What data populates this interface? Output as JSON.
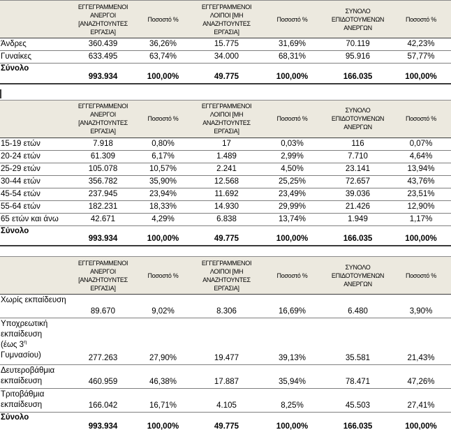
{
  "header": {
    "registered": "ΕΓΓΕΓΡΑΜΜΕΝΟΙ ΑΝΕΡΓΟΙ [ΑΝΑΖΗΤΟΥΝΤΕΣ ΕΡΓΑΣΙΑ]",
    "pct": "Ποσοστό %",
    "other": "ΕΓΓΕΓΡΑΜΜΕΝΟΙ ΛΟΙΠΟΙ [ΜΗ ΑΝΑΖΗΤΟΥΝΤΕΣ ΕΡΓΑΣΙΑ]",
    "subsidized": "ΣΥΝΟΛΟ ΕΠΙΔΟΤΟΥΜΕΝΩΝ ΑΝΕΡΓΩΝ"
  },
  "tables": [
    {
      "title": "by-gender",
      "rows": [
        {
          "label": "Άνδρες",
          "values": [
            "360.439",
            "36,26%",
            "15.775",
            "31,69%",
            "70.119",
            "42,23%"
          ]
        },
        {
          "label": "Γυναίκες",
          "values": [
            "633.495",
            "63,74%",
            "34.000",
            "68,31%",
            "95.916",
            "57,77%"
          ]
        }
      ],
      "total": {
        "label": "Σύνολο",
        "values": [
          "993.934",
          "100,00%",
          "49.775",
          "100,00%",
          "166.035",
          "100,00%"
        ]
      }
    },
    {
      "title": "by-age",
      "rows": [
        {
          "label": "15-19 ετών",
          "values": [
            "7.918",
            "0,80%",
            "17",
            "0,03%",
            "116",
            "0,07%"
          ]
        },
        {
          "label": "20-24 ετών",
          "values": [
            "61.309",
            "6,17%",
            "1.489",
            "2,99%",
            "7.710",
            "4,64%"
          ]
        },
        {
          "label": "25-29 ετών",
          "values": [
            "105.078",
            "10,57%",
            "2.241",
            "4,50%",
            "23.141",
            "13,94%"
          ]
        },
        {
          "label": "30-44 ετών",
          "values": [
            "356.782",
            "35,90%",
            "12.568",
            "25,25%",
            "72.657",
            "43,76%"
          ]
        },
        {
          "label": "45-54 ετών",
          "values": [
            "237.945",
            "23,94%",
            "11.692",
            "23,49%",
            "39.036",
            "23,51%"
          ]
        },
        {
          "label": "55-64 ετών",
          "values": [
            "182.231",
            "18,33%",
            "14.930",
            "29,99%",
            "21.426",
            "12,90%"
          ]
        },
        {
          "label": "65 ετών και άνω",
          "values": [
            "42.671",
            "4,29%",
            "6.838",
            "13,74%",
            "1.949",
            "1,17%"
          ]
        }
      ],
      "total": {
        "label": "Σύνολο",
        "values": [
          "993.934",
          "100,00%",
          "49.775",
          "100,00%",
          "166.035",
          "100,00%"
        ]
      }
    },
    {
      "title": "by-education",
      "rows": [
        {
          "label": "Χωρίς εκπαίδευση",
          "values": [
            "89.670",
            "9,02%",
            "8.306",
            "16,69%",
            "6.480",
            "3,90%"
          ]
        },
        {
          "label_lines": [
            "Υποχρεωτική",
            "εκπαίδευση",
            "(έως 3",
            "Γυμνασίου)"
          ],
          "label_sup": "η",
          "values": [
            "277.263",
            "27,90%",
            "19.477",
            "39,13%",
            "35.581",
            "21,43%"
          ]
        },
        {
          "label": "Δευτεροβάθμια εκπαίδευση",
          "values": [
            "460.959",
            "46,38%",
            "17.887",
            "35,94%",
            "78.471",
            "47,26%"
          ]
        },
        {
          "label": "Τριτοβάθμια εκπαίδευση",
          "values": [
            "166.042",
            "16,71%",
            "4.105",
            "8,25%",
            "45.503",
            "27,41%"
          ]
        }
      ],
      "total": {
        "label": "Σύνολο",
        "values": [
          "993.934",
          "100,00%",
          "49.775",
          "100,00%",
          "166.035",
          "100,00%"
        ]
      }
    }
  ],
  "colors": {
    "header_bg": "#ECE9DF",
    "header_border": "#3A3A3A",
    "row_border": "#7F7F7F",
    "text": "#000000"
  }
}
